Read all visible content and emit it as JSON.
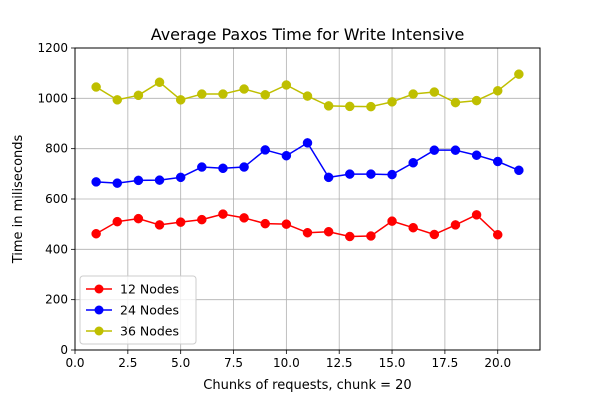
{
  "chart_data": {
    "type": "line",
    "title": "Average Paxos Time for Write Intensive",
    "xlabel": "Chunks of requests, chunk = 20",
    "ylabel": "Time in miliseconds",
    "xlim": [
      0.0,
      22.0
    ],
    "ylim": [
      0,
      1200
    ],
    "xticks": [
      0.0,
      2.5,
      5.0,
      7.5,
      10.0,
      12.5,
      15.0,
      17.5,
      20.0
    ],
    "xtick_labels": [
      "0.0",
      "2.5",
      "5.0",
      "7.5",
      "10.0",
      "12.5",
      "15.0",
      "17.5",
      "20.0"
    ],
    "yticks": [
      0,
      200,
      400,
      600,
      800,
      1000,
      1200
    ],
    "ytick_labels": [
      "0",
      "200",
      "400",
      "600",
      "800",
      "1000",
      "1200"
    ],
    "grid": true,
    "legend_position": "lower-left",
    "series": [
      {
        "name": "12 Nodes",
        "color": "#ff0000",
        "marker": "circle",
        "x": [
          1,
          2,
          3,
          4,
          5,
          6,
          7,
          8,
          9,
          10,
          11,
          12,
          13,
          14,
          15,
          16,
          17,
          18,
          19,
          20
        ],
        "y": [
          462,
          510,
          522,
          497,
          508,
          518,
          540,
          525,
          502,
          500,
          466,
          470,
          451,
          453,
          512,
          486,
          459,
          497,
          537,
          458
        ]
      },
      {
        "name": "24 Nodes",
        "color": "#0000ff",
        "marker": "circle",
        "x": [
          1,
          2,
          3,
          4,
          5,
          6,
          7,
          8,
          9,
          10,
          11,
          12,
          13,
          14,
          15,
          16,
          17,
          18,
          19,
          20,
          21
        ],
        "y": [
          668,
          663,
          674,
          675,
          686,
          727,
          722,
          727,
          795,
          772,
          823,
          686,
          699,
          699,
          697,
          744,
          794,
          794,
          774,
          749,
          714
        ]
      },
      {
        "name": "36 Nodes",
        "color": "#bfbf00",
        "marker": "circle",
        "x": [
          1,
          2,
          3,
          4,
          5,
          6,
          7,
          8,
          9,
          10,
          11,
          12,
          13,
          14,
          15,
          16,
          17,
          18,
          19,
          20,
          21
        ],
        "y": [
          1045,
          994,
          1012,
          1064,
          994,
          1017,
          1017,
          1037,
          1014,
          1053,
          1009,
          970,
          968,
          967,
          986,
          1017,
          1025,
          983,
          991,
          1030,
          1096
        ]
      }
    ]
  }
}
